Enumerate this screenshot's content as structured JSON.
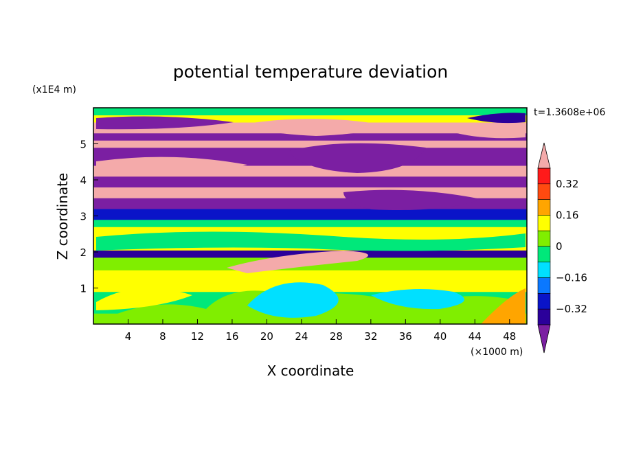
{
  "chart_data": {
    "type": "heatmap",
    "title": "potential temperature deviation",
    "xlabel": "X coordinate",
    "ylabel": "Z coordinate",
    "x_unit": "(×1000 m)",
    "y_unit": "(x1E4 m)",
    "time_label": "t=1.3608e+06",
    "xlim": [
      0,
      50
    ],
    "ylim": [
      0,
      6
    ],
    "x_ticks": [
      "4",
      "8",
      "12",
      "16",
      "20",
      "24",
      "28",
      "32",
      "36",
      "40",
      "44",
      "48"
    ],
    "y_ticks": [
      "1",
      "2",
      "3",
      "4",
      "5"
    ],
    "x_tick_values": [
      4,
      8,
      12,
      16,
      20,
      24,
      28,
      32,
      36,
      40,
      44,
      48
    ],
    "y_tick_values": [
      1,
      2,
      3,
      4,
      5
    ],
    "colorbar": {
      "levels": [
        -0.4,
        -0.32,
        -0.24,
        -0.16,
        -0.08,
        0,
        0.08,
        0.16,
        0.24,
        0.32,
        0.4
      ],
      "labels": [
        "0.32",
        "0.16",
        "0",
        "−0.16",
        "−0.32"
      ],
      "label_values": [
        0.32,
        0.16,
        0,
        -0.16,
        -0.32
      ],
      "colors": [
        "#7b1fa2",
        "#2b009a",
        "#0a14c8",
        "#0a78ff",
        "#00e0ff",
        "#00e87a",
        "#80ee00",
        "#ffff00",
        "#ffa500",
        "#ff4a10",
        "#ff1a1a",
        "#f4aaaa"
      ],
      "extend": "both"
    },
    "bands": [
      {
        "z": [
          0.0,
          0.3
        ],
        "value": 0.0
      },
      {
        "z": [
          0.3,
          0.9
        ],
        "value": -0.08
      },
      {
        "z": [
          0.9,
          1.5
        ],
        "value": 0.08
      },
      {
        "z": [
          1.5,
          1.85
        ],
        "value": 0.0
      },
      {
        "z": [
          1.85,
          2.05
        ],
        "value": -0.38
      },
      {
        "z": [
          2.05,
          2.7
        ],
        "value": 0.08
      },
      {
        "z": [
          2.7,
          2.9
        ],
        "value": -0.05
      },
      {
        "z": [
          2.9,
          3.2
        ],
        "value": -0.3
      },
      {
        "z": [
          3.2,
          3.5
        ],
        "value": -0.45
      },
      {
        "z": [
          3.5,
          3.8
        ],
        "value": 0.45
      },
      {
        "z": [
          3.8,
          4.1
        ],
        "value": -0.45
      },
      {
        "z": [
          4.1,
          4.4
        ],
        "value": 0.45
      },
      {
        "z": [
          4.4,
          4.9
        ],
        "value": -0.45
      },
      {
        "z": [
          4.9,
          5.1
        ],
        "value": 0.45
      },
      {
        "z": [
          5.1,
          5.3
        ],
        "value": -0.45
      },
      {
        "z": [
          5.3,
          5.6
        ],
        "value": 0.45
      },
      {
        "z": [
          5.6,
          5.8
        ],
        "value": 0.08
      },
      {
        "z": [
          5.8,
          6.0
        ],
        "value": -0.05
      }
    ]
  }
}
